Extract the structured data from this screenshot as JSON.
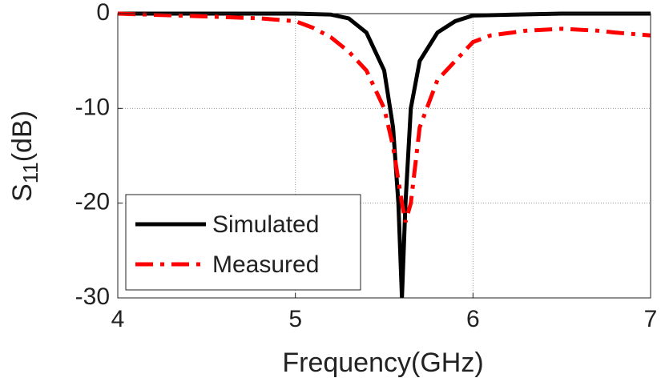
{
  "chart_data": {
    "type": "line",
    "xlabel": "Frequency(GHz)",
    "ylabel": [
      "S",
      "11",
      "(dB)"
    ],
    "xlim": [
      4,
      7
    ],
    "xticks": [
      4,
      5,
      6,
      7
    ],
    "ylim": [
      -30,
      0
    ],
    "yticks": [
      0,
      -10,
      -20,
      -30
    ],
    "grid": true,
    "legend": "lower-left",
    "series": [
      {
        "name": "Simulated",
        "color": "#000000",
        "style": "solid",
        "x": [
          4,
          4.5,
          5,
          5.2,
          5.3,
          5.4,
          5.5,
          5.55,
          5.58,
          5.6,
          5.62,
          5.65,
          5.7,
          5.8,
          5.9,
          6.0,
          6.5,
          7
        ],
        "values": [
          0,
          0,
          0,
          -0.1,
          -0.5,
          -2,
          -6,
          -12,
          -20,
          -30,
          -20,
          -10,
          -5,
          -2,
          -0.8,
          -0.2,
          0,
          0
        ]
      },
      {
        "name": "Measured",
        "color": "#ff0000",
        "style": "dashdot",
        "x": [
          4,
          4.5,
          4.8,
          5.0,
          5.1,
          5.2,
          5.3,
          5.4,
          5.5,
          5.55,
          5.6,
          5.62,
          5.65,
          5.7,
          5.8,
          5.9,
          6.0,
          6.1,
          6.3,
          6.5,
          6.7,
          6.8,
          7.0
        ],
        "values": [
          0,
          -0.3,
          -0.5,
          -0.8,
          -1.5,
          -2.5,
          -4,
          -6,
          -10,
          -14,
          -20,
          -22,
          -20,
          -12,
          -7,
          -5,
          -3,
          -2.3,
          -1.8,
          -1.6,
          -1.8,
          -2,
          -2.3
        ]
      }
    ]
  }
}
